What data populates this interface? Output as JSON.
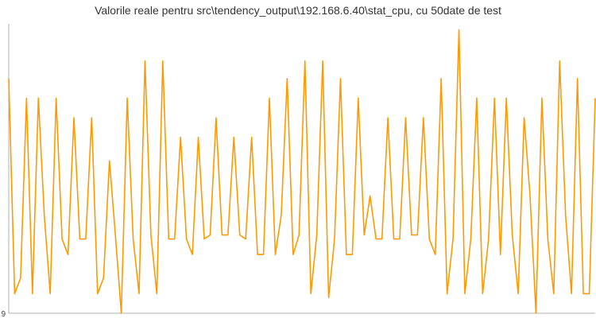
{
  "chart_data": {
    "type": "line",
    "title": "Valorile reale pentru src\\tendency_output\\192.168.6.40\\stat_cpu, cu 50date de test",
    "xlabel": "",
    "ylabel": "",
    "y_tick_labels": [
      "9"
    ],
    "ylim": [
      9,
      23.8
    ],
    "grid": false,
    "series": [
      {
        "color": "#ff9900",
        "values": [
          21.0,
          10.0,
          10.8,
          20.0,
          10.0,
          20.0,
          14.0,
          10.0,
          20.0,
          12.8,
          12.0,
          19.0,
          12.8,
          12.8,
          19.0,
          10.0,
          10.8,
          16.8,
          13.0,
          9.0,
          20.0,
          12.8,
          10.0,
          21.9,
          13.0,
          10.0,
          21.9,
          12.8,
          12.8,
          18.0,
          12.8,
          12.0,
          18.0,
          12.8,
          13.0,
          19.0,
          13.0,
          13.0,
          18.0,
          13.0,
          12.8,
          18.0,
          12.0,
          12.0,
          20.0,
          12.0,
          14.0,
          21.0,
          12.0,
          13.0,
          21.9,
          10.0,
          13.0,
          21.9,
          9.8,
          12.8,
          21.0,
          12.0,
          12.0,
          20.0,
          13.0,
          15.0,
          12.8,
          12.8,
          19.0,
          12.8,
          12.8,
          19.0,
          13.0,
          13.0,
          19.0,
          12.8,
          12.0,
          21.0,
          10.0,
          12.8,
          23.5,
          10.0,
          12.8,
          20.0,
          10.0,
          12.8,
          20.0,
          12.0,
          20.0,
          13.0,
          10.0,
          19.0,
          15.0,
          9.0,
          20.0,
          12.8,
          10.0,
          21.9,
          14.0,
          10.0,
          21.0,
          10.0,
          10.0,
          20.0
        ]
      }
    ]
  }
}
